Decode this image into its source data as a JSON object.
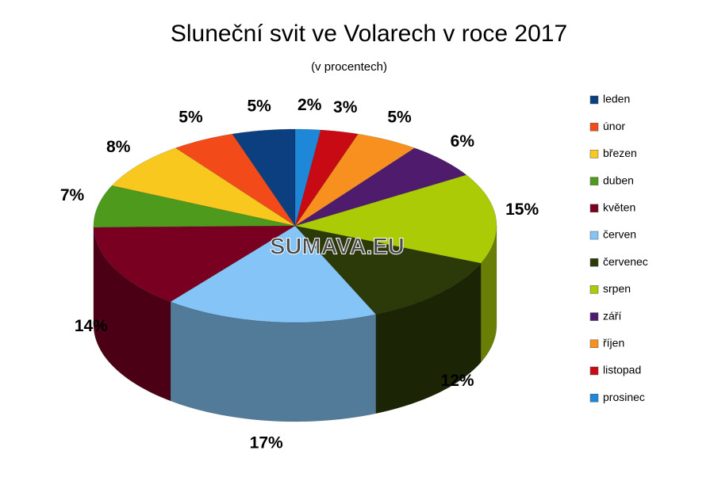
{
  "chart_data": {
    "type": "pie3d",
    "title": "Sluneční svit ve Volarech v roce 2017",
    "subtitle": "(v procentech)",
    "watermark": "SUMAVA.EU",
    "categories": [
      "leden",
      "únor",
      "březen",
      "duben",
      "květen",
      "červen",
      "červenec",
      "srpen",
      "září",
      "říjen",
      "listopad",
      "prosinec"
    ],
    "values": [
      5,
      5,
      8,
      7,
      14,
      17,
      12,
      15,
      6,
      5,
      3,
      2
    ],
    "value_labels": [
      "5%",
      "5%",
      "8%",
      "7%",
      "14%",
      "17%",
      "12%",
      "15%",
      "6%",
      "5%",
      "3%",
      "2%"
    ],
    "colors": [
      "#0b3f80",
      "#f24a18",
      "#f9c81e",
      "#4e9a1d",
      "#7a0022",
      "#85c4f7",
      "#2b3a08",
      "#aacb06",
      "#4f1c6d",
      "#f7901e",
      "#c80a14",
      "#1f87d8"
    ],
    "legend": "right"
  }
}
